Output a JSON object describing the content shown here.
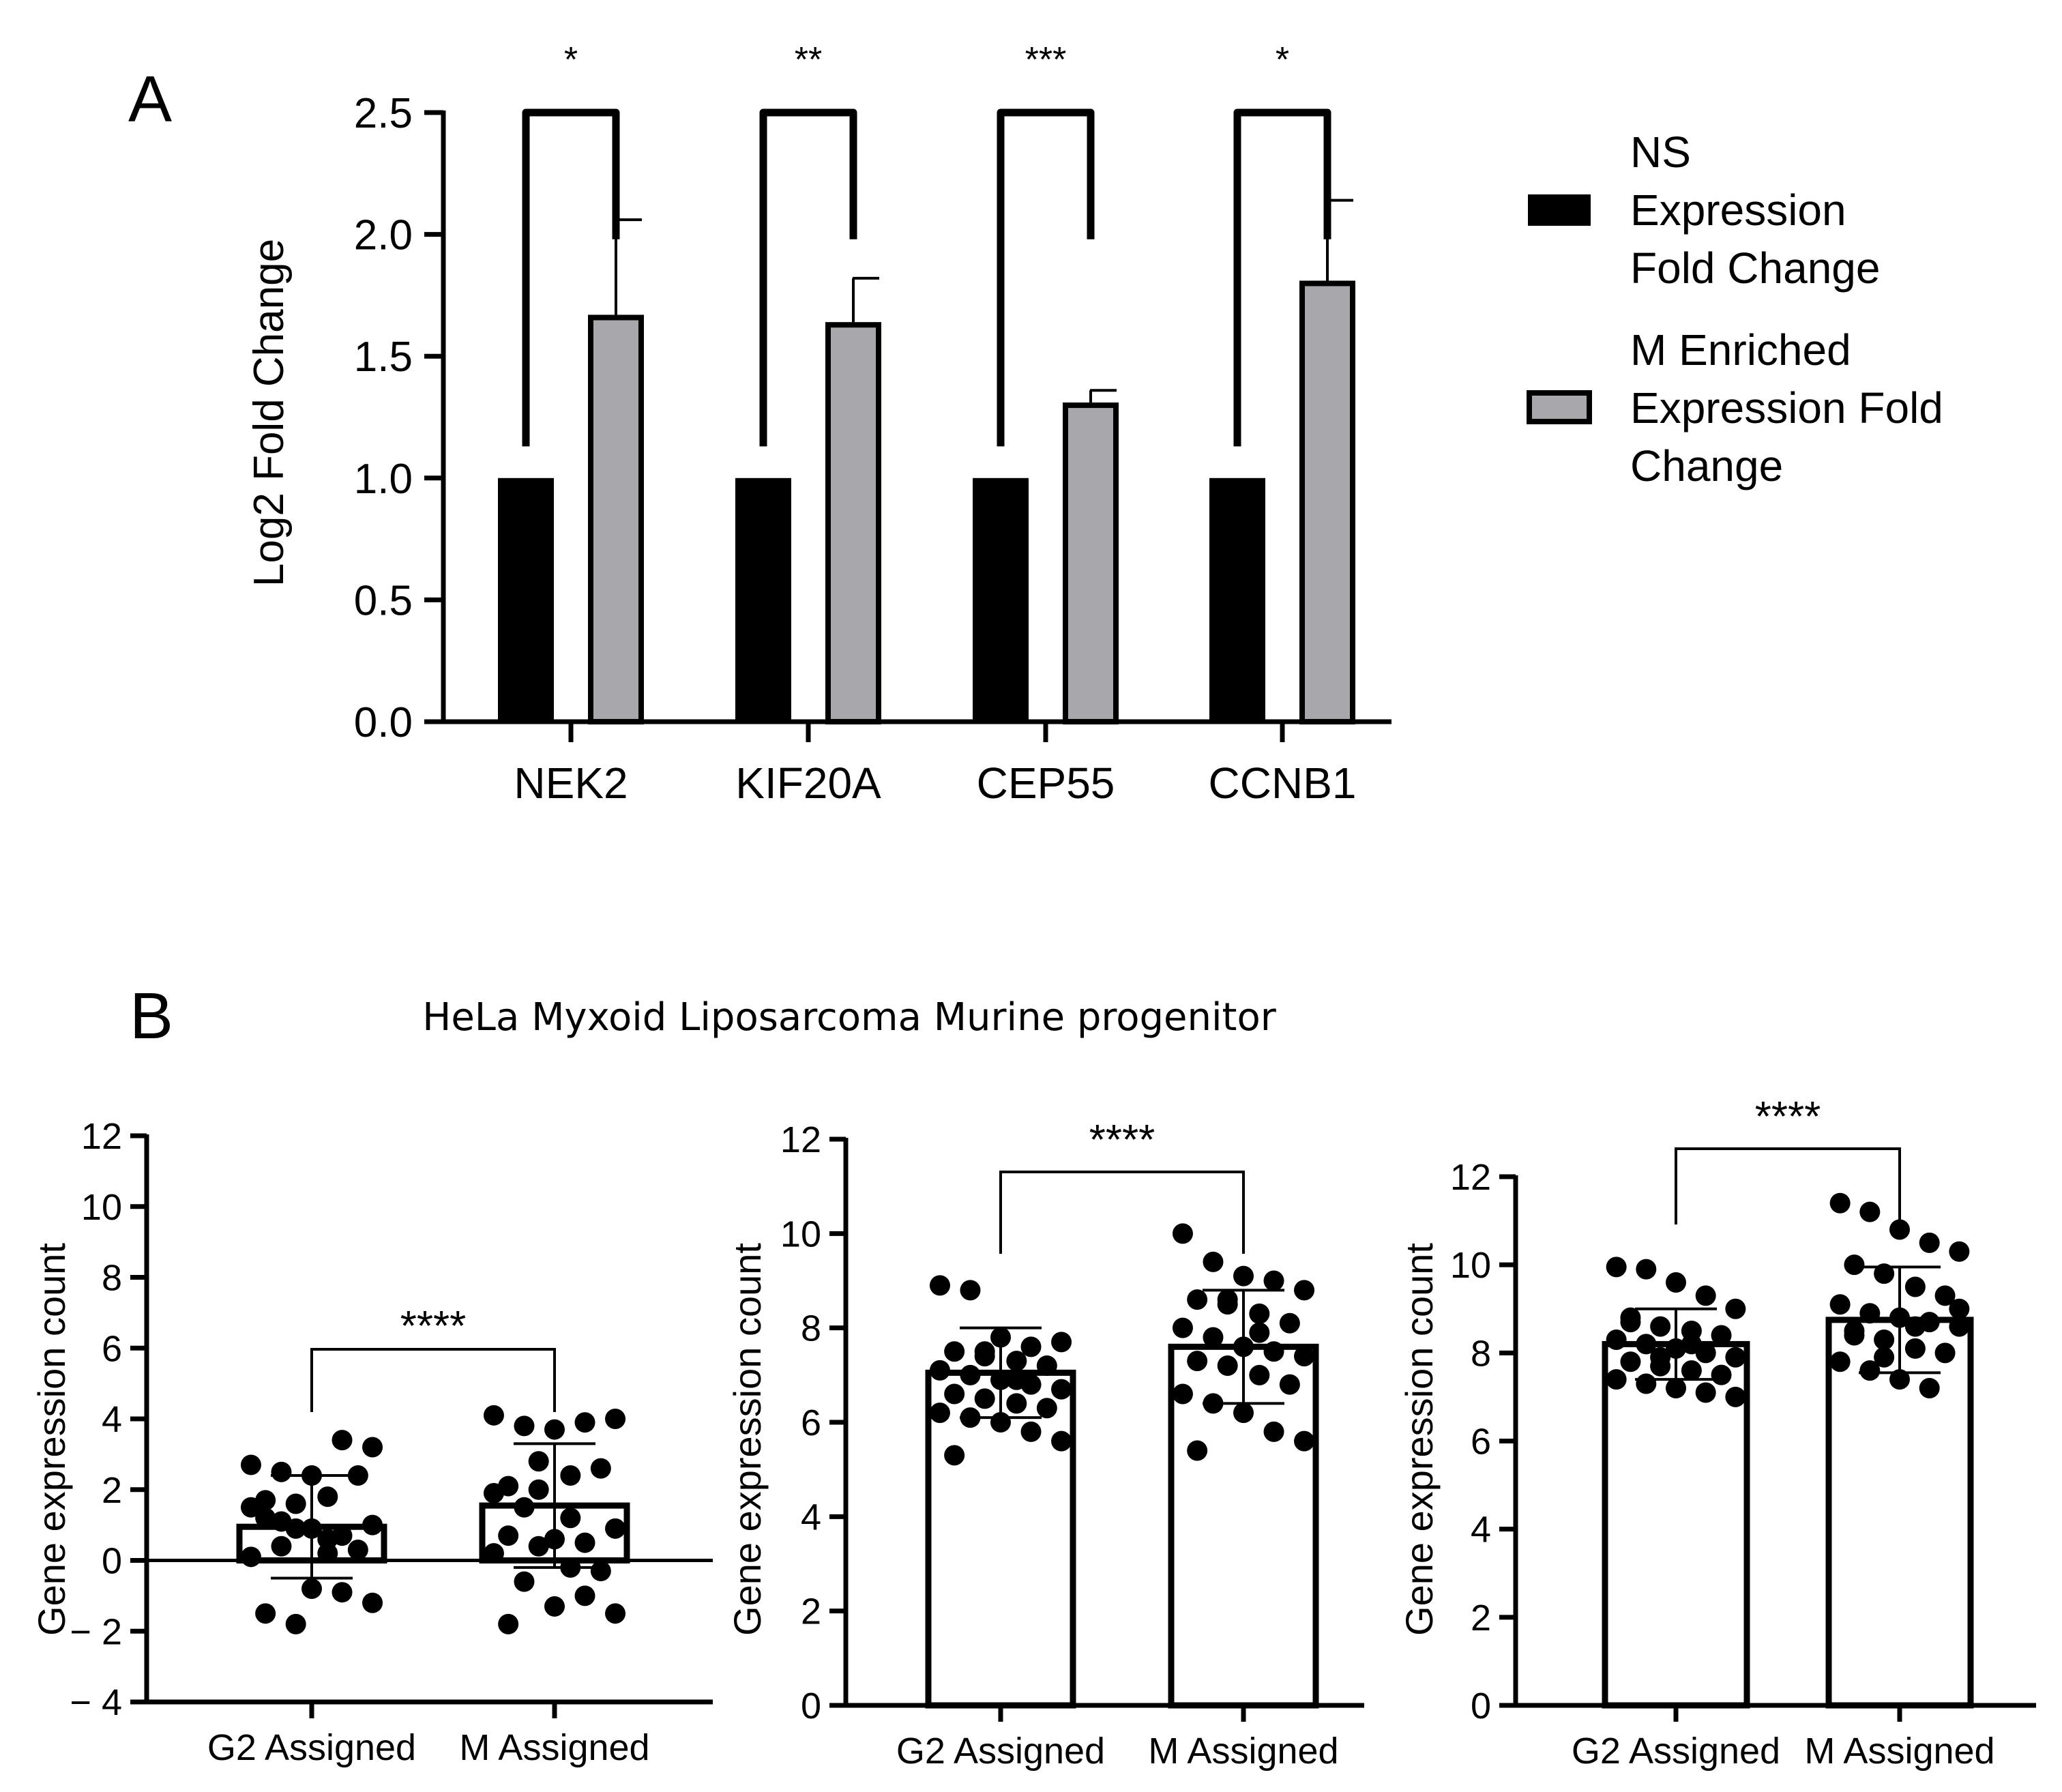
{
  "panel_labels": {
    "a": "A",
    "b": "B"
  },
  "panel_b_title": "HeLa Myxoid Liposarcoma Murine progenitor",
  "colors": {
    "ns": "#000000",
    "m": "#a8a8ac",
    "axis": "#000000",
    "bg": "#ffffff"
  },
  "chart_data": [
    {
      "id": "A",
      "type": "bar",
      "title": "",
      "ylabel": "Log2 Fold Change",
      "xlabel": "",
      "ylim": [
        0,
        2.5
      ],
      "yticks": [
        "0.0",
        "0.5",
        "1.0",
        "1.5",
        "2.0",
        "2.5"
      ],
      "categories": [
        "NEK2",
        "KIF20A",
        "CEP55",
        "CCNB1"
      ],
      "series": [
        {
          "name": "NS Expression Fold Change",
          "legend_lines": [
            "NS",
            "Expression",
            "Fold Change"
          ],
          "values": [
            1.0,
            1.0,
            1.0,
            1.0
          ],
          "errors": [
            0,
            0,
            0,
            0
          ]
        },
        {
          "name": "M Enriched Expression Fold Change",
          "legend_lines": [
            "M Enriched",
            "Expression Fold",
            "Change"
          ],
          "values": [
            1.67,
            1.64,
            1.31,
            1.81
          ],
          "errors": [
            0.39,
            0.18,
            0.05,
            0.33
          ]
        }
      ],
      "significance": [
        "*",
        "**",
        "***",
        "*"
      ],
      "legend_position": "right"
    },
    {
      "id": "B1",
      "type": "bar",
      "ylabel": "Gene expression count",
      "ylim": [
        -4,
        12
      ],
      "yticks": [
        "− 4",
        "− 2",
        "0",
        "2",
        "4",
        "6",
        "8",
        "10",
        "12"
      ],
      "categories": [
        "G2 Assigned",
        "M Assigned"
      ],
      "values": [
        0.95,
        1.55
      ],
      "sd": [
        1.45,
        1.75
      ],
      "significance": "****",
      "points": [
        [
          2.7,
          2.5,
          2.4,
          3.4,
          3.2,
          1.7,
          1.6,
          1.8,
          2.4,
          1.5,
          1.1,
          0.9,
          0.7,
          1.0,
          1.2,
          0.9,
          0.2,
          0.3,
          0.1,
          0.4,
          -0.8,
          -0.9,
          -1.2,
          -1.5,
          -1.8,
          0.6
        ],
        [
          4.1,
          3.8,
          3.7,
          3.9,
          4.0,
          2.1,
          2.0,
          2.4,
          2.6,
          1.9,
          1.5,
          0.6,
          0.5,
          0.9,
          0.7,
          0.4,
          -0.2,
          -0.3,
          0.2,
          -0.6,
          -1.3,
          -1.0,
          -1.5,
          -1.8,
          2.8,
          1.2
        ]
      ]
    },
    {
      "id": "B2",
      "type": "bar",
      "ylabel": "Gene expression count",
      "ylim": [
        0,
        12
      ],
      "yticks": [
        "0",
        "2",
        "4",
        "6",
        "8",
        "10",
        "12"
      ],
      "categories": [
        "G2 Assigned",
        "M Assigned"
      ],
      "values": [
        7.05,
        7.6
      ],
      "sd": [
        0.95,
        1.2
      ],
      "significance": "****",
      "points": [
        [
          8.9,
          8.8,
          7.8,
          7.6,
          7.7,
          7.5,
          7.4,
          7.3,
          7.2,
          7.1,
          7.0,
          6.9,
          6.8,
          6.7,
          6.6,
          6.5,
          6.4,
          6.3,
          6.2,
          6.1,
          6.0,
          5.8,
          5.6,
          5.3,
          7.5,
          6.9
        ],
        [
          10.0,
          9.4,
          9.1,
          9.0,
          8.8,
          8.6,
          8.5,
          8.3,
          8.1,
          8.0,
          7.8,
          7.6,
          7.5,
          7.4,
          7.3,
          7.2,
          7.0,
          6.8,
          6.6,
          6.4,
          6.2,
          5.8,
          5.6,
          5.4,
          8.6,
          7.9
        ]
      ]
    },
    {
      "id": "B3",
      "type": "bar",
      "ylabel": "Gene expression count",
      "ylim": [
        0,
        12
      ],
      "yticks": [
        "0",
        "2",
        "4",
        "6",
        "8",
        "10",
        "12"
      ],
      "categories": [
        "G2 Assigned",
        "M Assigned"
      ],
      "values": [
        8.2,
        8.75
      ],
      "sd": [
        0.8,
        1.2
      ],
      "significance": "****",
      "points": [
        [
          9.95,
          9.9,
          9.6,
          9.3,
          9.0,
          8.8,
          8.6,
          8.5,
          8.4,
          8.3,
          8.2,
          8.1,
          8.0,
          7.9,
          7.8,
          7.7,
          7.6,
          7.5,
          7.4,
          7.3,
          7.2,
          7.1,
          7.0,
          8.7,
          7.9,
          8.2
        ],
        [
          11.4,
          11.2,
          10.8,
          10.5,
          10.3,
          10.0,
          9.8,
          9.5,
          9.3,
          9.1,
          8.9,
          8.8,
          8.7,
          8.6,
          8.5,
          8.3,
          8.1,
          8.0,
          7.8,
          7.6,
          7.4,
          7.2,
          9.0,
          8.4,
          7.9,
          8.6
        ]
      ]
    }
  ]
}
